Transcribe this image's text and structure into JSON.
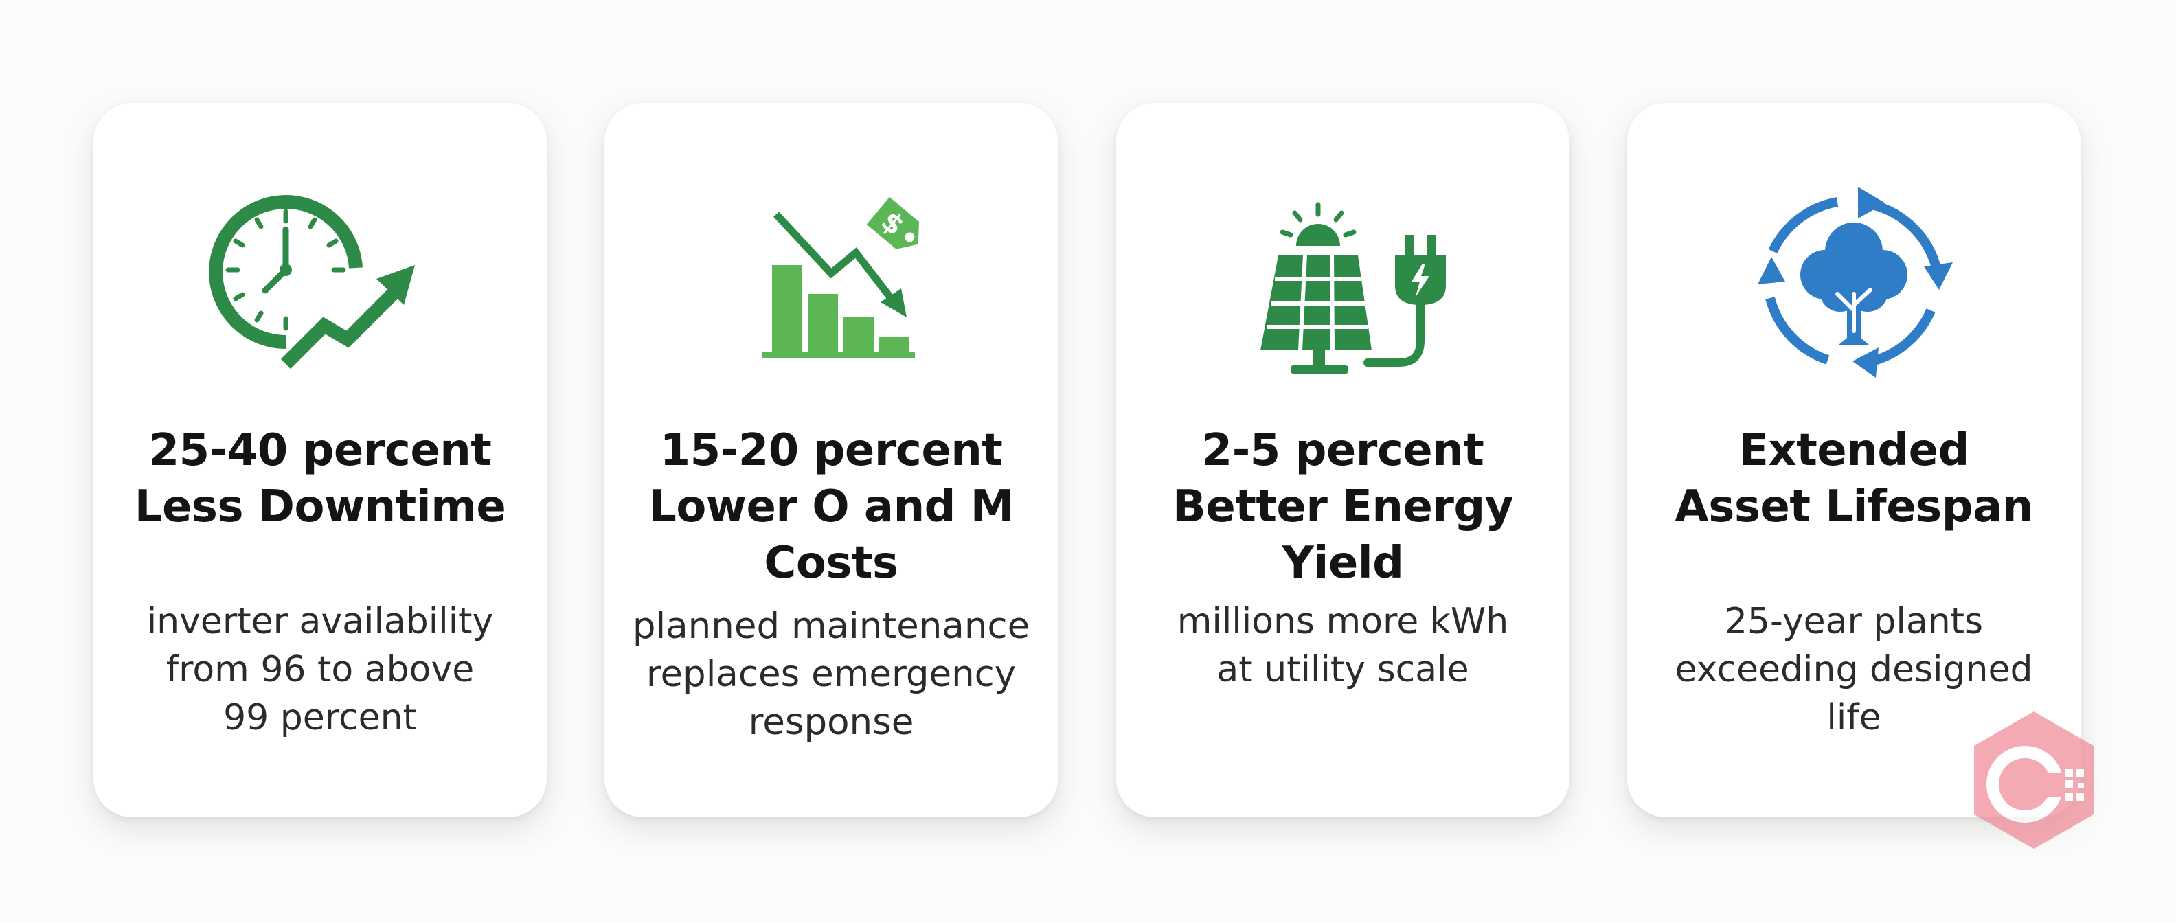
{
  "colors": {
    "green_dark": "#2e8b47",
    "green_light": "#5db655",
    "blue": "#2f7dc6",
    "watermark_pink": "#f08a96"
  },
  "cards": [
    {
      "icon": "clock-with-rising-arrow-icon",
      "title_line1": "25-40 percent",
      "title_line2": "Less Downtime",
      "desc_line1": "inverter availability",
      "desc_line2": "from 96 to above",
      "desc_line3": "99 percent"
    },
    {
      "icon": "falling-bar-chart-price-tag-icon",
      "title_line1": "15-20 percent",
      "title_line2": "Lower O and M",
      "title_line3": "Costs",
      "desc_line1": "planned maintenance",
      "desc_line2": "replaces emergency",
      "desc_line3": "response"
    },
    {
      "icon": "solar-panel-plug-icon",
      "title_line1": "2-5 percent",
      "title_line2": "Better Energy Yield",
      "desc_line1": "millions more kWh",
      "desc_line2": "at utility scale"
    },
    {
      "icon": "tree-cycle-icon",
      "title_line1": "Extended",
      "title_line2": "Asset Lifespan",
      "desc_line1": "25-year plants",
      "desc_line2": "exceeding designed",
      "desc_line3": "life"
    }
  ]
}
